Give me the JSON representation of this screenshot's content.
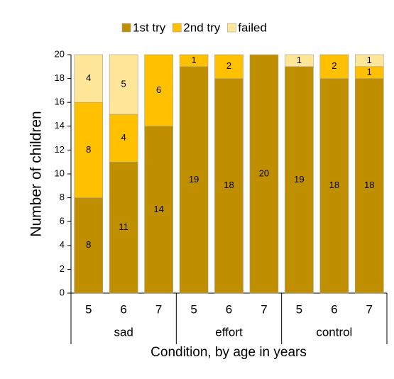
{
  "chart_data": {
    "type": "stacked_bar",
    "y_label": "Number of children",
    "x_label": "Condition, by age in years",
    "categories": [
      "5",
      "6",
      "7",
      "5",
      "6",
      "7",
      "5",
      "6",
      "7"
    ],
    "groups": [
      "sad",
      "effort",
      "control"
    ],
    "series": [
      {
        "name": "1st try",
        "color": "#bf8f00",
        "values": [
          8,
          11,
          14,
          19,
          18,
          20,
          19,
          18,
          18
        ]
      },
      {
        "name": "2nd try",
        "color": "#ffc000",
        "values": [
          8,
          4,
          6,
          1,
          2,
          0,
          0,
          2,
          1
        ]
      },
      {
        "name": "failed",
        "color": "#ffe699",
        "values": [
          4,
          5,
          0,
          0,
          0,
          0,
          1,
          0,
          1
        ]
      }
    ],
    "ylim": [
      0,
      20
    ],
    "yticks": [
      0,
      2,
      4,
      6,
      8,
      10,
      12,
      14,
      16,
      18,
      20
    ],
    "legend": "top"
  }
}
